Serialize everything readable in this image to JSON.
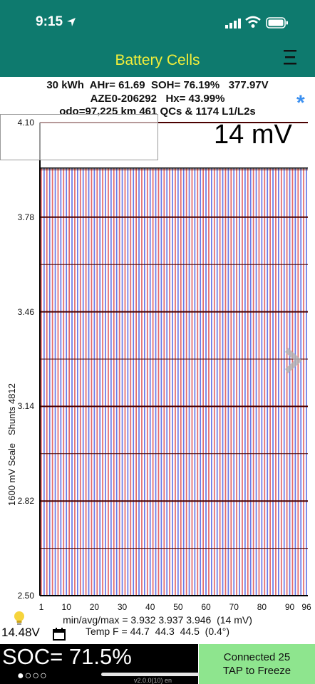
{
  "status_bar": {
    "time": "9:15"
  },
  "nav": {
    "title": "Battery Cells"
  },
  "header": {
    "line1": "30 kWh  AHr= 61.69  SOH= 76.19%   377.97V",
    "line2": "AZE0-206292   Hx= 43.99%",
    "line3": "odo=97,225 km 461 QCs & 1174 L1/L2s"
  },
  "chart_data": {
    "type": "bar",
    "title": "14 mV",
    "ylabel": "1600 mV Scale   Shunts 4812",
    "ylim": [
      2.5,
      4.1
    ],
    "y_ticks": [
      "4.10",
      "3.78",
      "3.46",
      "3.14",
      "2.82",
      "2.50"
    ],
    "x_ticks": [
      "1",
      "10",
      "20",
      "30",
      "40",
      "50",
      "60",
      "70",
      "80",
      "90",
      "96"
    ],
    "cell_count": 96,
    "min": 3.932,
    "avg": 3.937,
    "max": 3.946,
    "series_colors": {
      "odd": "#e36a6a",
      "even": "#6a7ae8"
    }
  },
  "stats": {
    "voltage_line": "min/avg/max = 3.932 3.937 3.946  (14 mV)",
    "temp_line": "Temp F = 44.7  44.3  44.5  (0.4°)"
  },
  "aux_voltage": "14.48V",
  "soc": {
    "text": "SOC= 71.5%",
    "dots": "●○○○"
  },
  "version": "v2.0.0(10) en",
  "connection": {
    "line1": "Connected 25",
    "line2": "TAP to Freeze"
  }
}
